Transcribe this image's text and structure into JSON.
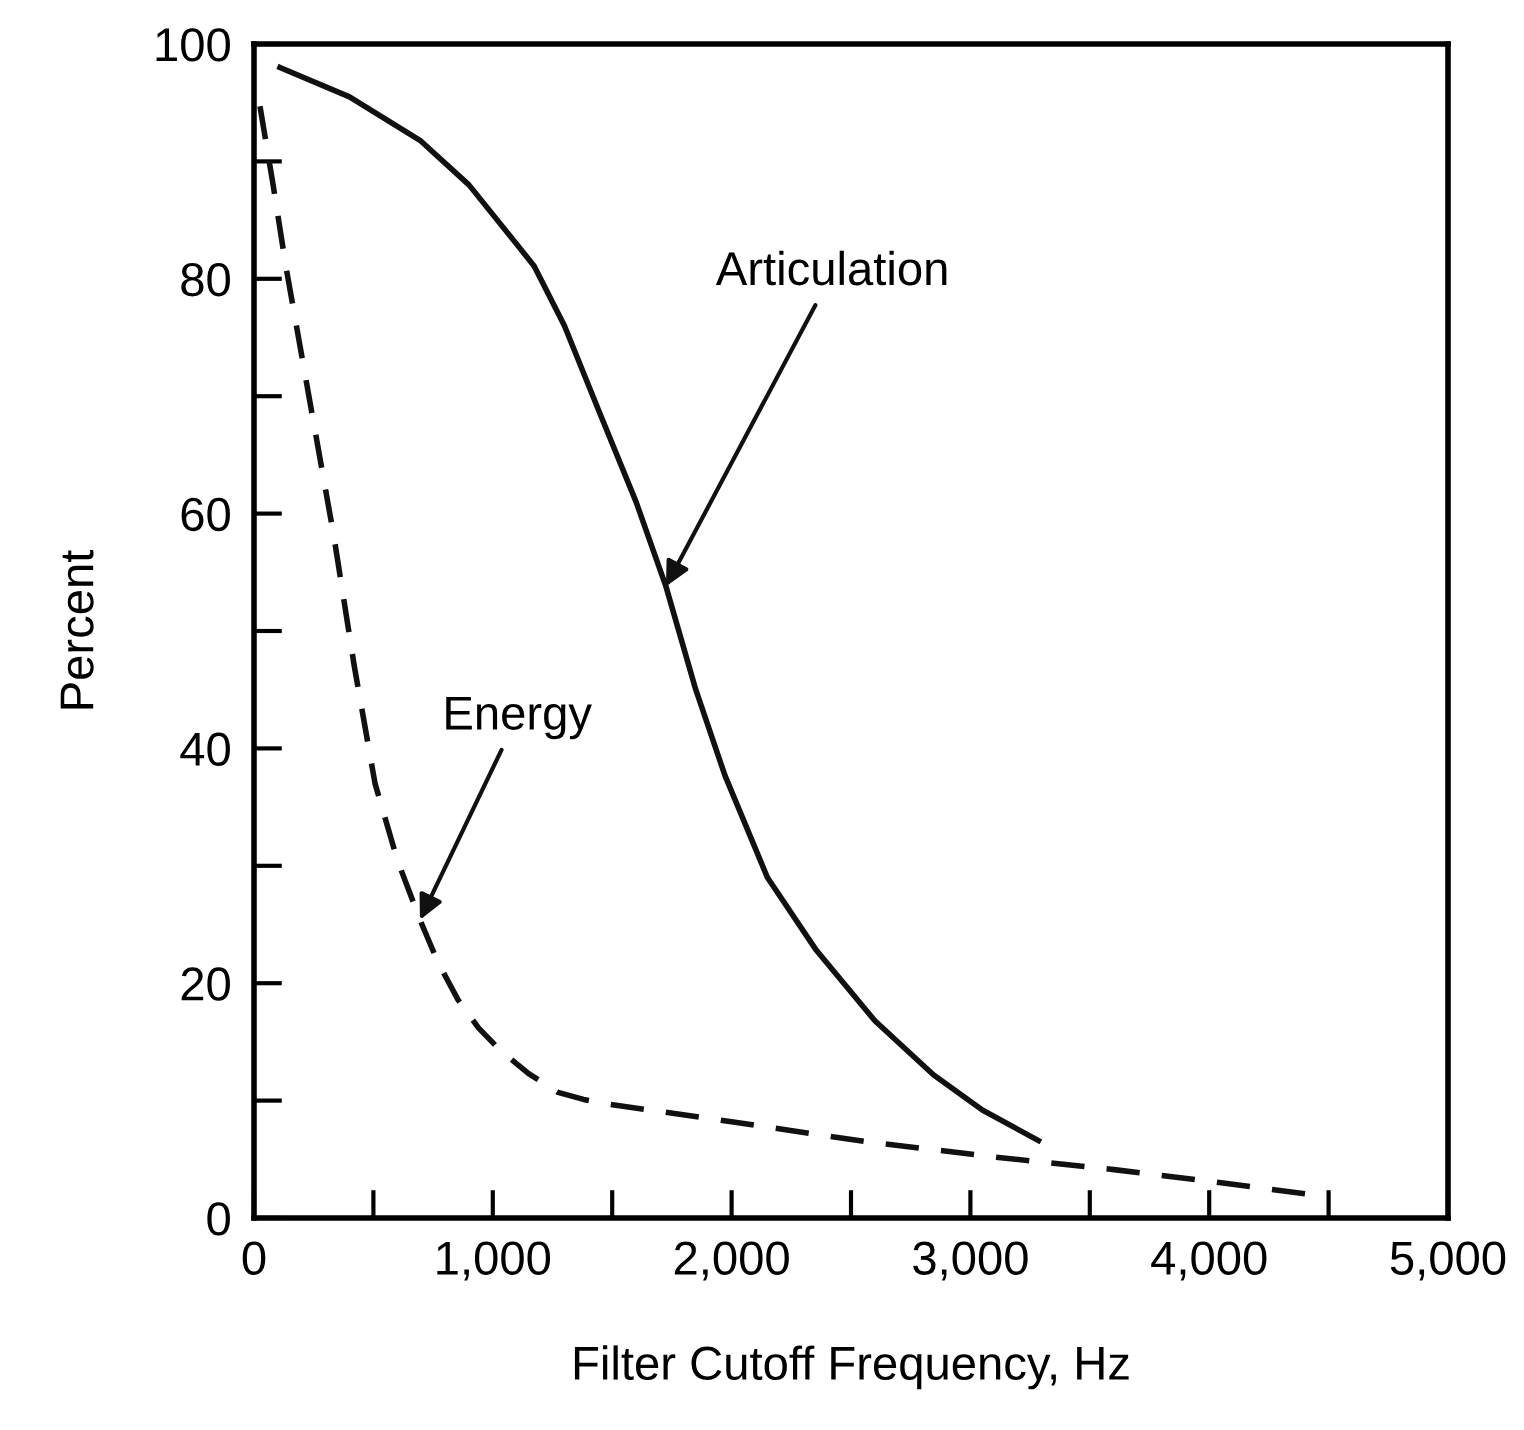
{
  "chart_data": {
    "type": "line",
    "xlabel": "Filter Cutoff Frequency, Hz",
    "ylabel": "Percent",
    "xlim": [
      0,
      5000
    ],
    "ylim": [
      0,
      100
    ],
    "xticks": [
      0,
      {
        "value": 500,
        "label": null
      },
      {
        "value": 1000,
        "label": "1,000"
      },
      {
        "value": 1500,
        "label": null
      },
      {
        "value": 2000,
        "label": "2,000"
      },
      {
        "value": 2500,
        "label": null
      },
      {
        "value": 3000,
        "label": "3,000"
      },
      {
        "value": 3500,
        "label": null
      },
      {
        "value": 4000,
        "label": "4,000"
      },
      {
        "value": 4500,
        "label": null
      },
      {
        "value": 5000,
        "label": "5,000"
      }
    ],
    "yticks": [
      0,
      {
        "value": 10,
        "label": null
      },
      20,
      {
        "value": 30,
        "label": null
      },
      40,
      {
        "value": 50,
        "label": null
      },
      60,
      {
        "value": 70,
        "label": null
      },
      80,
      {
        "value": 90,
        "label": null
      },
      100
    ],
    "grid": false,
    "legend": false,
    "marker": "none",
    "series": [
      {
        "color": "#111111",
        "line_style": "solid",
        "x": [
          109,
          400,
          695,
          900,
          1173,
          1300,
          1449,
          1600,
          1725,
          1850,
          1972,
          2150,
          2355,
          2600,
          2845,
          3050,
          3285
        ],
        "values": [
          98,
          95.5,
          91.8,
          88,
          81.1,
          76,
          68.5,
          61,
          53.8,
          45,
          37.7,
          29,
          22.8,
          16.8,
          12.2,
          9.2,
          6.6
        ]
      },
      {
        "color": "#111111",
        "line_style": "dashed",
        "x": [
          25,
          80,
          134,
          230,
          335,
          420,
          507,
          600,
          695,
          770,
          854,
          940,
          1030,
          1150,
          1273,
          1380,
          1482,
          2000,
          2563,
          3100,
          3610,
          4050,
          4464
        ],
        "values": [
          94.7,
          88,
          81,
          70,
          58,
          47,
          37,
          30.5,
          25.4,
          21.8,
          18.6,
          16.2,
          14.3,
          12.3,
          10.7,
          10.1,
          9.7,
          8.2,
          6.5,
          5.2,
          4.1,
          3,
          1.9
        ]
      }
    ],
    "annotations": [
      {
        "text": "Articulation",
        "x": 1725,
        "y": 53.8
      },
      {
        "text": "Energy",
        "x": 695,
        "y": 25.4
      }
    ]
  }
}
